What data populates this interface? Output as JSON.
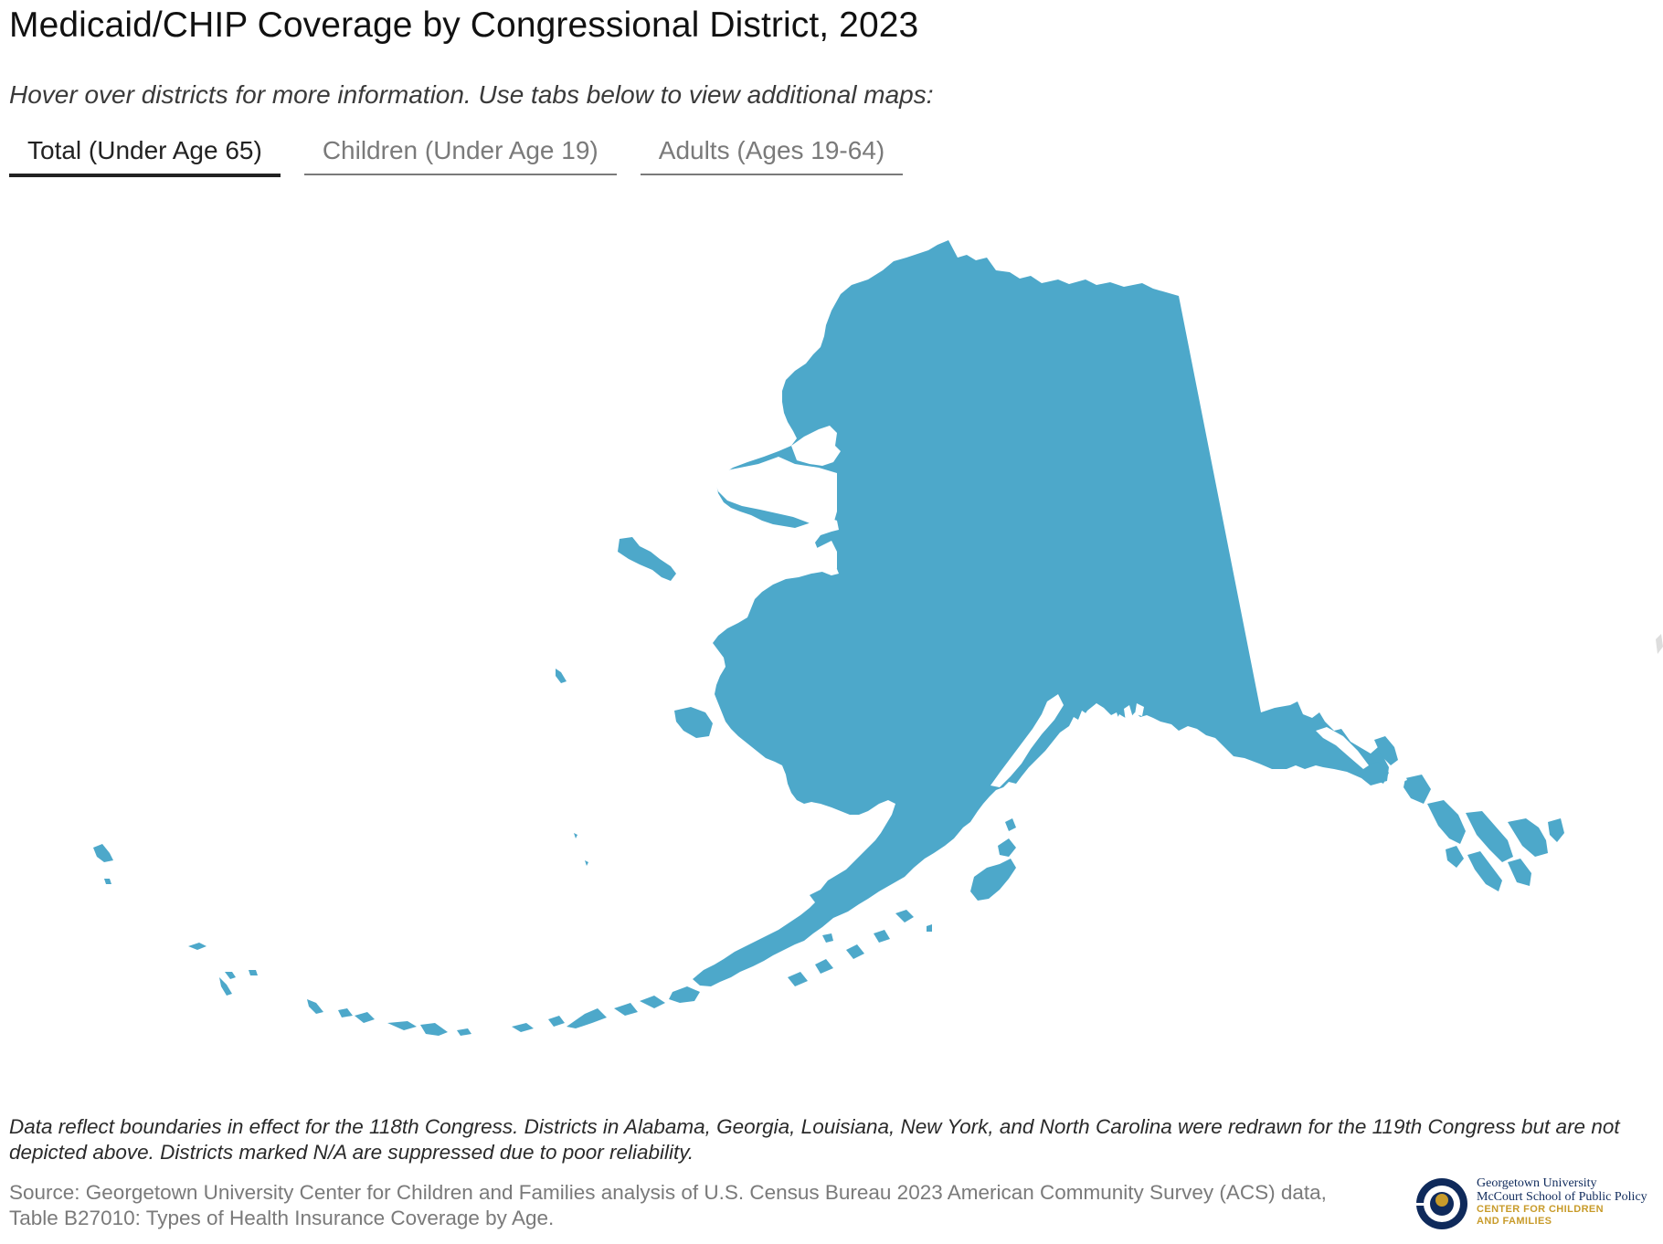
{
  "header": {
    "title": "Medicaid/CHIP Coverage by Congressional District, 2023",
    "subtitle": "Hover over districts for more information. Use tabs below to view additional maps:"
  },
  "tabs": [
    {
      "label": "Total (Under Age 65)",
      "active": true
    },
    {
      "label": "Children (Under Age 19)",
      "active": false
    },
    {
      "label": "Adults (Ages 19-64)",
      "active": false
    }
  ],
  "map": {
    "region": "Alaska",
    "fill_color": "#4da8ca"
  },
  "footer": {
    "note": "Data reflect boundaries in effect for the 118th Congress. Districts in Alabama, Georgia, Louisiana, New York, and North Carolina were redrawn for the 119th Congress but are not depicted above. Districts marked N/A are suppressed due to poor reliability.",
    "source": "Source: Georgetown University Center for Children and Families analysis of U.S. Census Bureau 2023 American Community Survey (ACS) data, Table B27010: Types of Health Insurance Coverage by Age."
  },
  "logo": {
    "line1": "Georgetown University",
    "line2": "McCourt School of Public Policy",
    "line3": "CENTER FOR CHILDREN",
    "line4": "AND FAMILIES",
    "colors": {
      "navy": "#0f2a5b",
      "gold": "#c89b2a"
    }
  }
}
